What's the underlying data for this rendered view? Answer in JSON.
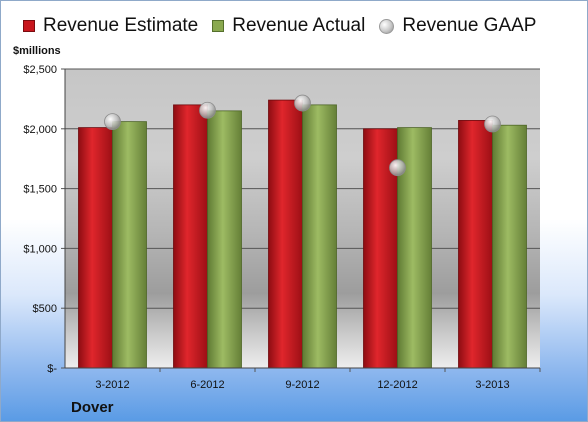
{
  "legend": {
    "estimate": "Revenue Estimate",
    "actual": "Revenue Actual",
    "gaap": "Revenue GAAP"
  },
  "unit_label": "$millions",
  "company": "Dover",
  "colors": {
    "estimate": "#c8161d",
    "actual": "#8aa94f",
    "gaap": "#b8b8b8"
  },
  "chart_data": {
    "type": "bar",
    "categories": [
      "3-2012",
      "6-2012",
      "9-2012",
      "12-2012",
      "3-2013"
    ],
    "series": [
      {
        "name": "Revenue Estimate",
        "values": [
          2010,
          2200,
          2240,
          2000,
          2070
        ]
      },
      {
        "name": "Revenue Actual",
        "values": [
          2060,
          2150,
          2200,
          2010,
          2030
        ]
      },
      {
        "name": "Revenue GAAP",
        "values": [
          2060,
          2155,
          2215,
          1675,
          2040
        ]
      }
    ],
    "ylim": [
      0,
      2500
    ],
    "yticks": [
      0,
      500,
      1000,
      1500,
      2000,
      2500
    ],
    "ytick_labels": [
      "$-",
      "$500",
      "$1,000",
      "$1,500",
      "$2,000",
      "$2,500"
    ],
    "grid": true,
    "legend_position": "top"
  }
}
